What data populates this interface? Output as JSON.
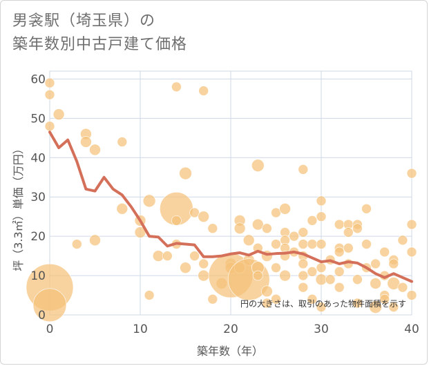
{
  "title": {
    "line1": "男衾駅（埼玉県）の",
    "line2": "築年数別中古戸建て価格"
  },
  "chart_data": {
    "type": "scatter",
    "title": "男衾駅（埼玉県）の築年数別中古戸建て価格",
    "xlabel": "築年数（年）",
    "ylabel": "坪（3.3㎡）単価（万円）",
    "xlim": [
      0,
      40
    ],
    "ylim": [
      0,
      62
    ],
    "xticks": [
      "0",
      "10",
      "20",
      "30",
      "40"
    ],
    "yticks": [
      "0",
      "10",
      "20",
      "30",
      "40",
      "50",
      "60"
    ],
    "xtick_values": [
      0,
      10,
      20,
      30,
      40
    ],
    "ytick_values": [
      0,
      10,
      20,
      30,
      40,
      50,
      60
    ],
    "grid": true,
    "annotation": "円の大きさは、取引のあった物件面積を示す",
    "colors": {
      "bubble": "#f5c27a",
      "line": "#d4705a",
      "grid": "#cfd7e6"
    },
    "bubbles": [
      {
        "x": 0,
        "y": 59,
        "s": 7
      },
      {
        "x": 0,
        "y": 56,
        "s": 7
      },
      {
        "x": 0,
        "y": 48,
        "s": 7
      },
      {
        "x": 1,
        "y": 51,
        "s": 8
      },
      {
        "x": 0,
        "y": 7,
        "s": 34
      },
      {
        "x": 0,
        "y": 2.5,
        "s": 24
      },
      {
        "x": 3,
        "y": 18,
        "s": 7
      },
      {
        "x": 4,
        "y": 46,
        "s": 8
      },
      {
        "x": 4,
        "y": 44,
        "s": 8
      },
      {
        "x": 5,
        "y": 42,
        "s": 8
      },
      {
        "x": 5,
        "y": 19,
        "s": 8
      },
      {
        "x": 8,
        "y": 44,
        "s": 7
      },
      {
        "x": 8,
        "y": 27,
        "s": 8
      },
      {
        "x": 10,
        "y": 24,
        "s": 8
      },
      {
        "x": 10,
        "y": 21,
        "s": 8
      },
      {
        "x": 11,
        "y": 29,
        "s": 9
      },
      {
        "x": 11,
        "y": 5,
        "s": 7
      },
      {
        "x": 12,
        "y": 15,
        "s": 8
      },
      {
        "x": 13,
        "y": 15,
        "s": 7
      },
      {
        "x": 14,
        "y": 58,
        "s": 7
      },
      {
        "x": 14,
        "y": 27,
        "s": 24
      },
      {
        "x": 14,
        "y": 24,
        "s": 7
      },
      {
        "x": 14,
        "y": 18,
        "s": 7
      },
      {
        "x": 15,
        "y": 36,
        "s": 9
      },
      {
        "x": 15,
        "y": 12,
        "s": 8
      },
      {
        "x": 16,
        "y": 26,
        "s": 7
      },
      {
        "x": 16,
        "y": 15,
        "s": 7
      },
      {
        "x": 17,
        "y": 57,
        "s": 7
      },
      {
        "x": 17,
        "y": 25,
        "s": 8
      },
      {
        "x": 17,
        "y": 13,
        "s": 7
      },
      {
        "x": 17,
        "y": 10,
        "s": 8
      },
      {
        "x": 18,
        "y": 22,
        "s": 7
      },
      {
        "x": 18,
        "y": 4,
        "s": 7
      },
      {
        "x": 19,
        "y": 8,
        "s": 8
      },
      {
        "x": 20,
        "y": 13,
        "s": 8
      },
      {
        "x": 20,
        "y": 12,
        "s": 8
      },
      {
        "x": 20,
        "y": 10,
        "s": 32
      },
      {
        "x": 21,
        "y": 24,
        "s": 8
      },
      {
        "x": 21,
        "y": 22,
        "s": 8
      },
      {
        "x": 21,
        "y": 12,
        "s": 8
      },
      {
        "x": 22,
        "y": 19,
        "s": 8
      },
      {
        "x": 22,
        "y": 14,
        "s": 8
      },
      {
        "x": 22,
        "y": 9,
        "s": 30
      },
      {
        "x": 23,
        "y": 38,
        "s": 9
      },
      {
        "x": 23,
        "y": 23,
        "s": 8
      },
      {
        "x": 23,
        "y": 17,
        "s": 7
      },
      {
        "x": 23,
        "y": 12,
        "s": 9
      },
      {
        "x": 23,
        "y": 10,
        "s": 7
      },
      {
        "x": 24,
        "y": 22,
        "s": 7
      },
      {
        "x": 24,
        "y": 15,
        "s": 8
      },
      {
        "x": 24,
        "y": 6,
        "s": 8
      },
      {
        "x": 24,
        "y": 3,
        "s": 7
      },
      {
        "x": 25,
        "y": 26,
        "s": 7
      },
      {
        "x": 25,
        "y": 18,
        "s": 7
      },
      {
        "x": 25,
        "y": 12,
        "s": 7
      },
      {
        "x": 25,
        "y": 4,
        "s": 7
      },
      {
        "x": 26,
        "y": 27,
        "s": 8
      },
      {
        "x": 26,
        "y": 21,
        "s": 7
      },
      {
        "x": 26,
        "y": 19,
        "s": 7
      },
      {
        "x": 26,
        "y": 17,
        "s": 7
      },
      {
        "x": 26,
        "y": 15,
        "s": 7
      },
      {
        "x": 26,
        "y": 10,
        "s": 8
      },
      {
        "x": 27,
        "y": 20,
        "s": 7
      },
      {
        "x": 27,
        "y": 16,
        "s": 7
      },
      {
        "x": 28,
        "y": 37,
        "s": 7
      },
      {
        "x": 28,
        "y": 21,
        "s": 7
      },
      {
        "x": 28,
        "y": 18,
        "s": 7
      },
      {
        "x": 28,
        "y": 15,
        "s": 7
      },
      {
        "x": 28,
        "y": 13,
        "s": 7
      },
      {
        "x": 28,
        "y": 10,
        "s": 7
      },
      {
        "x": 28,
        "y": 7,
        "s": 7
      },
      {
        "x": 29,
        "y": 24,
        "s": 7
      },
      {
        "x": 29,
        "y": 18,
        "s": 7
      },
      {
        "x": 29,
        "y": 11,
        "s": 7
      },
      {
        "x": 29,
        "y": 4,
        "s": 7
      },
      {
        "x": 30,
        "y": 29,
        "s": 7
      },
      {
        "x": 30,
        "y": 25,
        "s": 7
      },
      {
        "x": 30,
        "y": 18,
        "s": 7
      },
      {
        "x": 30,
        "y": 12,
        "s": 7
      },
      {
        "x": 30,
        "y": 9,
        "s": 8
      },
      {
        "x": 30,
        "y": 2,
        "s": 7
      },
      {
        "x": 31,
        "y": 14,
        "s": 7
      },
      {
        "x": 31,
        "y": 9,
        "s": 7
      },
      {
        "x": 32,
        "y": 23,
        "s": 7
      },
      {
        "x": 32,
        "y": 17,
        "s": 7
      },
      {
        "x": 32,
        "y": 16,
        "s": 7
      },
      {
        "x": 32,
        "y": 11,
        "s": 7
      },
      {
        "x": 32,
        "y": 7,
        "s": 7
      },
      {
        "x": 33,
        "y": 23,
        "s": 7
      },
      {
        "x": 33,
        "y": 21,
        "s": 7
      },
      {
        "x": 33,
        "y": 17,
        "s": 7
      },
      {
        "x": 33,
        "y": 13,
        "s": 7
      },
      {
        "x": 34,
        "y": 23,
        "s": 7
      },
      {
        "x": 34,
        "y": 22,
        "s": 7
      },
      {
        "x": 34,
        "y": 9,
        "s": 7
      },
      {
        "x": 34,
        "y": 3,
        "s": 7
      },
      {
        "x": 35,
        "y": 27,
        "s": 7
      },
      {
        "x": 35,
        "y": 18,
        "s": 7
      },
      {
        "x": 35,
        "y": 12,
        "s": 7
      },
      {
        "x": 36,
        "y": 13,
        "s": 7
      },
      {
        "x": 36,
        "y": 8,
        "s": 8
      },
      {
        "x": 36,
        "y": 2,
        "s": 9
      },
      {
        "x": 37,
        "y": 16,
        "s": 7
      },
      {
        "x": 37,
        "y": 10,
        "s": 7
      },
      {
        "x": 37,
        "y": 5,
        "s": 7
      },
      {
        "x": 37,
        "y": 4,
        "s": 7
      },
      {
        "x": 38,
        "y": 14,
        "s": 7
      },
      {
        "x": 38,
        "y": 13,
        "s": 7
      },
      {
        "x": 38,
        "y": 8,
        "s": 9
      },
      {
        "x": 38,
        "y": 2,
        "s": 7
      },
      {
        "x": 39,
        "y": 19,
        "s": 7
      },
      {
        "x": 39,
        "y": 7,
        "s": 7
      },
      {
        "x": 40,
        "y": 36,
        "s": 7
      },
      {
        "x": 40,
        "y": 23,
        "s": 7
      },
      {
        "x": 40,
        "y": 16,
        "s": 7
      },
      {
        "x": 40,
        "y": 5,
        "s": 7
      }
    ],
    "trend": {
      "x": [
        0,
        1,
        2,
        3,
        4,
        5,
        6,
        7,
        8,
        9,
        10,
        11,
        12,
        13,
        14,
        15,
        16,
        17,
        18,
        19,
        20,
        21,
        22,
        23,
        24,
        25,
        26,
        27,
        28,
        29,
        30,
        31,
        32,
        33,
        34,
        35,
        36,
        37,
        38,
        39,
        40
      ],
      "y": [
        46.5,
        42.5,
        44.5,
        39,
        32,
        31.5,
        35,
        32,
        30.5,
        27.5,
        24,
        20,
        19.8,
        17.5,
        18.2,
        18,
        17.8,
        14.8,
        14.8,
        15,
        15.5,
        15.8,
        15.2,
        16.2,
        15.4,
        15.6,
        15.7,
        16,
        15.5,
        14.5,
        13.5,
        13.8,
        13,
        13.5,
        13.2,
        12,
        10.5,
        9.5,
        10.5,
        9.5,
        8.5
      ]
    }
  }
}
